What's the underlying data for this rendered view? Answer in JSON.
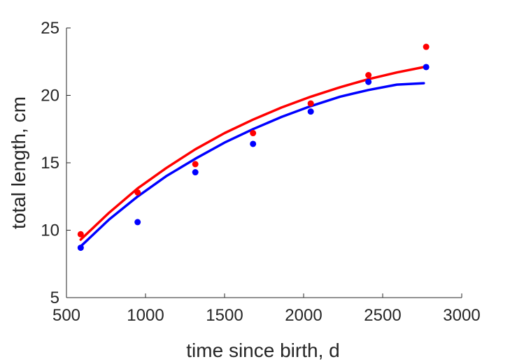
{
  "chart_data": {
    "type": "scatter",
    "title": "",
    "xlabel": "time since birth, d",
    "ylabel": "total length, cm",
    "xlim": [
      500,
      3000
    ],
    "ylim": [
      5,
      25
    ],
    "xticks": [
      500,
      1000,
      1500,
      2000,
      2500,
      3000
    ],
    "yticks": [
      5,
      10,
      15,
      20,
      25
    ],
    "grid": false,
    "series": [
      {
        "color": "#ff0000",
        "points": {
          "x": [
            590,
            950,
            1315,
            1680,
            2045,
            2410,
            2775
          ],
          "y": [
            9.7,
            12.8,
            14.9,
            17.2,
            19.4,
            21.5,
            23.6
          ]
        },
        "fit": {
          "x": [
            590,
            770,
            950,
            1130,
            1315,
            1500,
            1680,
            1860,
            2045,
            2230,
            2410,
            2590,
            2760
          ],
          "y": [
            9.3,
            11.3,
            13.1,
            14.6,
            16.0,
            17.2,
            18.2,
            19.1,
            19.9,
            20.6,
            21.2,
            21.7,
            22.1
          ]
        }
      },
      {
        "color": "#0000ff",
        "points": {
          "x": [
            590,
            950,
            1315,
            1680,
            2045,
            2410,
            2775
          ],
          "y": [
            8.7,
            10.6,
            14.3,
            16.4,
            18.8,
            21.0,
            22.1
          ]
        },
        "fit": {
          "x": [
            590,
            770,
            950,
            1130,
            1315,
            1500,
            1680,
            1860,
            2045,
            2230,
            2410,
            2590,
            2760
          ],
          "y": [
            8.8,
            10.8,
            12.5,
            14.0,
            15.3,
            16.5,
            17.5,
            18.4,
            19.2,
            19.9,
            20.4,
            20.8,
            20.9
          ]
        }
      }
    ]
  }
}
